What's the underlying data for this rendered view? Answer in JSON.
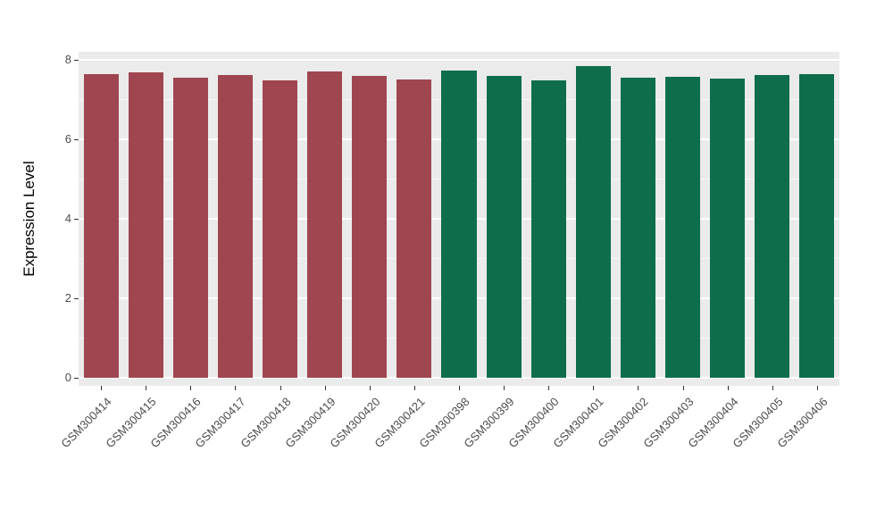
{
  "chart_data": {
    "type": "bar",
    "title": "",
    "xlabel": "",
    "ylabel": "Expression Level",
    "ylim": [
      0,
      8
    ],
    "yticks": [
      0,
      2,
      4,
      6,
      8
    ],
    "yticks_minor": [
      1,
      3,
      5,
      7
    ],
    "grid": true,
    "legend_position": "none",
    "panel_background": "#ebebeb",
    "categories": [
      "GSM300414",
      "GSM300415",
      "GSM300416",
      "GSM300417",
      "GSM300418",
      "GSM300419",
      "GSM300420",
      "GSM300421",
      "GSM300398",
      "GSM300399",
      "GSM300400",
      "GSM300401",
      "GSM300402",
      "GSM300403",
      "GSM300404",
      "GSM300405",
      "GSM300406"
    ],
    "values": [
      7.64,
      7.69,
      7.55,
      7.62,
      7.48,
      7.71,
      7.6,
      7.51,
      7.73,
      7.6,
      7.48,
      7.84,
      7.55,
      7.57,
      7.53,
      7.62,
      7.64
    ],
    "groups": [
      "A",
      "A",
      "A",
      "A",
      "A",
      "A",
      "A",
      "A",
      "B",
      "B",
      "B",
      "B",
      "B",
      "B",
      "B",
      "B",
      "B"
    ],
    "group_colors": {
      "A": "#a04651",
      "B": "#0e6e4b"
    }
  }
}
